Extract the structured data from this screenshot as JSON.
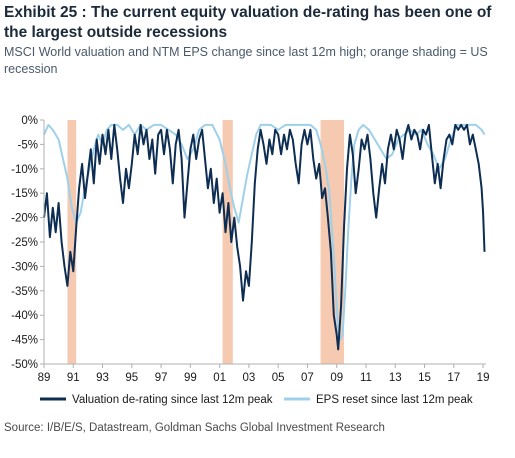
{
  "header": {
    "title": "Exhibit 25 : The current equity valuation de-rating has been one of the largest outside recessions",
    "subtitle": "MSCI World valuation and NTM EPS change since last 12m high; orange shading = US recession"
  },
  "source": "Source: I/B/E/S, Datastream, Goldman Sachs Global Investment Research",
  "colors": {
    "valuation": "#0d2d52",
    "eps": "#9fd0ea",
    "recession": "#f6c9b1",
    "axis": "#b0b0b0"
  },
  "chart_data": {
    "type": "line",
    "ylim": [
      -50,
      0
    ],
    "y_ticks": [
      "0%",
      "-5%",
      "-10%",
      "-15%",
      "-20%",
      "-25%",
      "-30%",
      "-35%",
      "-40%",
      "-45%",
      "-50%"
    ],
    "y_tick_values": [
      0,
      -5,
      -10,
      -15,
      -20,
      -25,
      -30,
      -35,
      -40,
      -45,
      -50
    ],
    "xlim": [
      1989.0,
      2019.2
    ],
    "x_ticks": [
      "89",
      "91",
      "93",
      "95",
      "97",
      "99",
      "01",
      "03",
      "05",
      "07",
      "09",
      "11",
      "13",
      "15",
      "17",
      "19"
    ],
    "x_tick_values": [
      1989,
      1991,
      1993,
      1995,
      1997,
      1999,
      2001,
      2003,
      2005,
      2007,
      2009,
      2011,
      2013,
      2015,
      2017,
      2019
    ],
    "recessions": [
      [
        1990.6,
        1991.2
      ],
      [
        2001.2,
        2001.9
      ],
      [
        2007.9,
        2009.5
      ]
    ],
    "grid": false,
    "legend_position": "bottom",
    "series": [
      {
        "name": "Valuation de-rating since last 12m peak",
        "points": [
          [
            1989.0,
            -20
          ],
          [
            1989.2,
            -15
          ],
          [
            1989.4,
            -24
          ],
          [
            1989.6,
            -18
          ],
          [
            1989.8,
            -23
          ],
          [
            1990.0,
            -17
          ],
          [
            1990.2,
            -25
          ],
          [
            1990.4,
            -30
          ],
          [
            1990.6,
            -34
          ],
          [
            1990.8,
            -27
          ],
          [
            1991.0,
            -31
          ],
          [
            1991.2,
            -22
          ],
          [
            1991.4,
            -14
          ],
          [
            1991.6,
            -9
          ],
          [
            1991.8,
            -16
          ],
          [
            1992.0,
            -11
          ],
          [
            1992.2,
            -6
          ],
          [
            1992.4,
            -13
          ],
          [
            1992.6,
            -4
          ],
          [
            1992.8,
            -9
          ],
          [
            1993.0,
            -3
          ],
          [
            1993.2,
            -7
          ],
          [
            1993.4,
            -2
          ],
          [
            1993.6,
            -8
          ],
          [
            1993.8,
            -1
          ],
          [
            1994.0,
            -6
          ],
          [
            1994.2,
            -12
          ],
          [
            1994.4,
            -17
          ],
          [
            1994.6,
            -10
          ],
          [
            1994.8,
            -14
          ],
          [
            1995.0,
            -9
          ],
          [
            1995.2,
            -3
          ],
          [
            1995.4,
            -7
          ],
          [
            1995.6,
            -1
          ],
          [
            1995.8,
            -5
          ],
          [
            1996.0,
            -2
          ],
          [
            1996.2,
            -8
          ],
          [
            1996.4,
            -4
          ],
          [
            1996.6,
            -11
          ],
          [
            1996.8,
            -3
          ],
          [
            1997.0,
            -2
          ],
          [
            1997.2,
            -7
          ],
          [
            1997.4,
            -2
          ],
          [
            1997.6,
            -6
          ],
          [
            1997.8,
            -13
          ],
          [
            1998.0,
            -5
          ],
          [
            1998.2,
            -2
          ],
          [
            1998.4,
            -8
          ],
          [
            1998.6,
            -20
          ],
          [
            1998.8,
            -13
          ],
          [
            1999.0,
            -6
          ],
          [
            1999.2,
            -3
          ],
          [
            1999.4,
            -8
          ],
          [
            1999.6,
            -4
          ],
          [
            1999.8,
            -2
          ],
          [
            2000.0,
            -8
          ],
          [
            2000.2,
            -14
          ],
          [
            2000.4,
            -10
          ],
          [
            2000.6,
            -17
          ],
          [
            2000.8,
            -12
          ],
          [
            2001.0,
            -19
          ],
          [
            2001.2,
            -15
          ],
          [
            2001.4,
            -23
          ],
          [
            2001.6,
            -17
          ],
          [
            2001.8,
            -25
          ],
          [
            2002.0,
            -20
          ],
          [
            2002.2,
            -26
          ],
          [
            2002.4,
            -30
          ],
          [
            2002.6,
            -37
          ],
          [
            2002.8,
            -31
          ],
          [
            2003.0,
            -34
          ],
          [
            2003.2,
            -25
          ],
          [
            2003.4,
            -13
          ],
          [
            2003.6,
            -6
          ],
          [
            2003.8,
            -2
          ],
          [
            2004.0,
            -5
          ],
          [
            2004.2,
            -9
          ],
          [
            2004.4,
            -4
          ],
          [
            2004.6,
            -7
          ],
          [
            2004.8,
            -2
          ],
          [
            2005.0,
            -3
          ],
          [
            2005.2,
            -7
          ],
          [
            2005.4,
            -3
          ],
          [
            2005.6,
            -6
          ],
          [
            2005.8,
            -2
          ],
          [
            2006.0,
            -4
          ],
          [
            2006.2,
            -9
          ],
          [
            2006.4,
            -13
          ],
          [
            2006.6,
            -5
          ],
          [
            2006.8,
            -2
          ],
          [
            2007.0,
            -5
          ],
          [
            2007.2,
            -2
          ],
          [
            2007.4,
            -8
          ],
          [
            2007.6,
            -12
          ],
          [
            2007.8,
            -9
          ],
          [
            2008.0,
            -16
          ],
          [
            2008.2,
            -14
          ],
          [
            2008.4,
            -20
          ],
          [
            2008.6,
            -27
          ],
          [
            2008.8,
            -40
          ],
          [
            2009.0,
            -44
          ],
          [
            2009.1,
            -47
          ],
          [
            2009.3,
            -38
          ],
          [
            2009.5,
            -22
          ],
          [
            2009.7,
            -10
          ],
          [
            2009.9,
            -3
          ],
          [
            2010.1,
            -7
          ],
          [
            2010.3,
            -15
          ],
          [
            2010.5,
            -10
          ],
          [
            2010.7,
            -4
          ],
          [
            2010.9,
            -6
          ],
          [
            2011.1,
            -3
          ],
          [
            2011.3,
            -8
          ],
          [
            2011.5,
            -15
          ],
          [
            2011.7,
            -20
          ],
          [
            2011.9,
            -14
          ],
          [
            2012.1,
            -9
          ],
          [
            2012.3,
            -13
          ],
          [
            2012.5,
            -6
          ],
          [
            2012.7,
            -3
          ],
          [
            2012.9,
            -6
          ],
          [
            2013.1,
            -2
          ],
          [
            2013.3,
            -4
          ],
          [
            2013.5,
            -8
          ],
          [
            2013.7,
            -3
          ],
          [
            2013.9,
            -1
          ],
          [
            2014.1,
            -4
          ],
          [
            2014.3,
            -2
          ],
          [
            2014.5,
            -3
          ],
          [
            2014.7,
            -6
          ],
          [
            2014.9,
            -2
          ],
          [
            2015.1,
            -3
          ],
          [
            2015.3,
            -1
          ],
          [
            2015.5,
            -7
          ],
          [
            2015.7,
            -13
          ],
          [
            2015.9,
            -9
          ],
          [
            2016.1,
            -14
          ],
          [
            2016.3,
            -8
          ],
          [
            2016.5,
            -4
          ],
          [
            2016.7,
            -3
          ],
          [
            2016.9,
            -5
          ],
          [
            2017.1,
            -1
          ],
          [
            2017.3,
            -2
          ],
          [
            2017.5,
            -1
          ],
          [
            2017.7,
            -2
          ],
          [
            2017.9,
            -1
          ],
          [
            2018.1,
            -5
          ],
          [
            2018.3,
            -3
          ],
          [
            2018.5,
            -6
          ],
          [
            2018.7,
            -9
          ],
          [
            2018.9,
            -14
          ],
          [
            2019.0,
            -19
          ],
          [
            2019.1,
            -27
          ]
        ]
      },
      {
        "name": "EPS reset since last 12m peak",
        "points": [
          [
            1989.0,
            -3
          ],
          [
            1989.3,
            -1
          ],
          [
            1989.6,
            -2
          ],
          [
            1990.0,
            -4
          ],
          [
            1990.3,
            -8
          ],
          [
            1990.6,
            -12
          ],
          [
            1990.9,
            -18
          ],
          [
            1991.2,
            -21
          ],
          [
            1991.5,
            -19
          ],
          [
            1991.8,
            -14
          ],
          [
            1992.1,
            -10
          ],
          [
            1992.4,
            -6
          ],
          [
            1992.7,
            -3
          ],
          [
            1993.0,
            -5
          ],
          [
            1993.3,
            -2
          ],
          [
            1993.6,
            -1
          ],
          [
            1994.0,
            -1
          ],
          [
            1994.4,
            -2
          ],
          [
            1994.8,
            -1
          ],
          [
            1995.2,
            -3
          ],
          [
            1995.6,
            -1
          ],
          [
            1996.0,
            -2
          ],
          [
            1996.5,
            -1
          ],
          [
            1997.0,
            -1
          ],
          [
            1997.5,
            -2
          ],
          [
            1998.0,
            -3
          ],
          [
            1998.4,
            -5
          ],
          [
            1998.8,
            -8
          ],
          [
            1999.2,
            -6
          ],
          [
            1999.6,
            -2
          ],
          [
            2000.0,
            -1
          ],
          [
            2000.5,
            -1
          ],
          [
            2001.0,
            -4
          ],
          [
            2001.4,
            -9
          ],
          [
            2001.7,
            -14
          ],
          [
            2002.0,
            -18
          ],
          [
            2002.3,
            -21
          ],
          [
            2002.6,
            -16
          ],
          [
            2002.9,
            -11
          ],
          [
            2003.2,
            -7
          ],
          [
            2003.5,
            -3
          ],
          [
            2003.8,
            -1
          ],
          [
            2004.5,
            -1
          ],
          [
            2005.0,
            -2
          ],
          [
            2005.5,
            -1
          ],
          [
            2006.0,
            -1
          ],
          [
            2006.6,
            -1
          ],
          [
            2007.2,
            -1
          ],
          [
            2007.6,
            -2
          ],
          [
            2007.9,
            -5
          ],
          [
            2008.2,
            -9
          ],
          [
            2008.5,
            -15
          ],
          [
            2008.8,
            -28
          ],
          [
            2009.0,
            -38
          ],
          [
            2009.1,
            -43
          ],
          [
            2009.25,
            -45
          ],
          [
            2009.4,
            -44
          ],
          [
            2009.6,
            -34
          ],
          [
            2009.8,
            -22
          ],
          [
            2010.0,
            -12
          ],
          [
            2010.2,
            -5
          ],
          [
            2010.5,
            -2
          ],
          [
            2010.8,
            -1
          ],
          [
            2011.2,
            -2
          ],
          [
            2011.6,
            -4
          ],
          [
            2012.0,
            -6
          ],
          [
            2012.4,
            -8
          ],
          [
            2012.8,
            -7
          ],
          [
            2013.2,
            -4
          ],
          [
            2013.6,
            -3
          ],
          [
            2014.0,
            -2
          ],
          [
            2014.4,
            -3
          ],
          [
            2014.8,
            -2
          ],
          [
            2015.2,
            -5
          ],
          [
            2015.6,
            -7
          ],
          [
            2016.0,
            -10
          ],
          [
            2016.4,
            -8
          ],
          [
            2016.8,
            -4
          ],
          [
            2017.2,
            -1
          ],
          [
            2017.6,
            -1
          ],
          [
            2018.0,
            -1
          ],
          [
            2018.5,
            -1
          ],
          [
            2018.9,
            -2
          ],
          [
            2019.1,
            -3
          ]
        ]
      }
    ]
  }
}
